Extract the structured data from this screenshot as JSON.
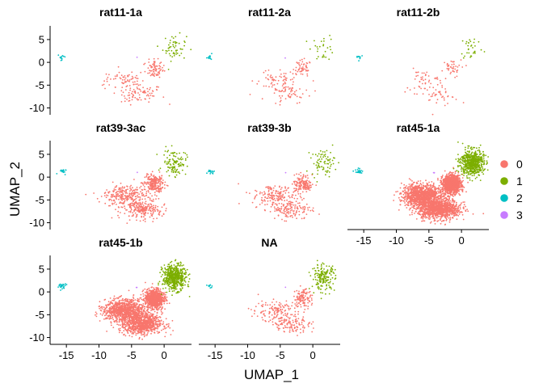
{
  "chart_data": {
    "type": "scatter",
    "xlabel": "UMAP_1",
    "ylabel": "UMAP_2",
    "xlim": [
      -17.5,
      4.2
    ],
    "ylim": [
      -11.5,
      8
    ],
    "x_ticks": [
      -15,
      -10,
      -5,
      0
    ],
    "y_ticks": [
      5,
      0,
      -5,
      -10
    ],
    "x_tick_labels": [
      "-15",
      "-10",
      "-5",
      "0"
    ],
    "y_tick_labels": [
      "5",
      "0",
      "-5",
      "-10"
    ],
    "legend": {
      "placement": "right",
      "entries": [
        {
          "label": "0",
          "color": "#F8766D"
        },
        {
          "label": "1",
          "color": "#7CAE00"
        },
        {
          "label": "2",
          "color": "#00BFC4"
        },
        {
          "label": "3",
          "color": "#C77CFF"
        }
      ]
    },
    "clusters": {
      "0": {
        "color": "#F8766D",
        "centers": [
          [
            -6,
            -4
          ],
          [
            -3.5,
            -7
          ],
          [
            -1.5,
            -1.5
          ]
        ],
        "spreads": [
          [
            1.6,
            1.2
          ],
          [
            1.6,
            1.1
          ],
          [
            0.7,
            1.0
          ]
        ]
      },
      "1": {
        "color": "#7CAE00",
        "centers": [
          [
            1.6,
            3.2
          ]
        ],
        "spreads": [
          [
            0.9,
            1.4
          ]
        ]
      },
      "2": {
        "color": "#00BFC4",
        "centers": [
          [
            -15.7,
            1.2
          ]
        ],
        "spreads": [
          [
            0.3,
            0.3
          ]
        ]
      },
      "3": {
        "color": "#C77CFF",
        "centers": [
          [
            -4.2,
            1.0
          ]
        ],
        "spreads": [
          [
            0.05,
            0.05
          ]
        ]
      }
    },
    "facets": [
      {
        "name": "rat11-1a",
        "row": 0,
        "col": 0,
        "counts": [
          220,
          55,
          12,
          1
        ],
        "show_x_axis": false,
        "show_y_axis": true
      },
      {
        "name": "rat11-2a",
        "row": 0,
        "col": 1,
        "counts": [
          170,
          28,
          10,
          1
        ],
        "show_x_axis": false,
        "show_y_axis": false
      },
      {
        "name": "rat11-2b",
        "row": 0,
        "col": 2,
        "counts": [
          130,
          32,
          10,
          0
        ],
        "show_x_axis": false,
        "show_y_axis": false
      },
      {
        "name": "rat39-3ac",
        "row": 1,
        "col": 0,
        "counts": [
          700,
          110,
          15,
          1
        ],
        "show_x_axis": false,
        "show_y_axis": true
      },
      {
        "name": "rat39-3b",
        "row": 1,
        "col": 1,
        "counts": [
          450,
          75,
          14,
          1
        ],
        "show_x_axis": false,
        "show_y_axis": false
      },
      {
        "name": "rat45-1a",
        "row": 1,
        "col": 2,
        "counts": [
          3200,
          600,
          25,
          3
        ],
        "show_x_axis": true,
        "show_y_axis": false
      },
      {
        "name": "rat45-1b",
        "row": 2,
        "col": 0,
        "counts": [
          2600,
          520,
          22,
          2
        ],
        "show_x_axis": true,
        "show_y_axis": true
      },
      {
        "name": "NA",
        "row": 2,
        "col": 1,
        "counts": [
          380,
          170,
          12,
          1
        ],
        "show_x_axis": true,
        "show_y_axis": false
      }
    ]
  }
}
